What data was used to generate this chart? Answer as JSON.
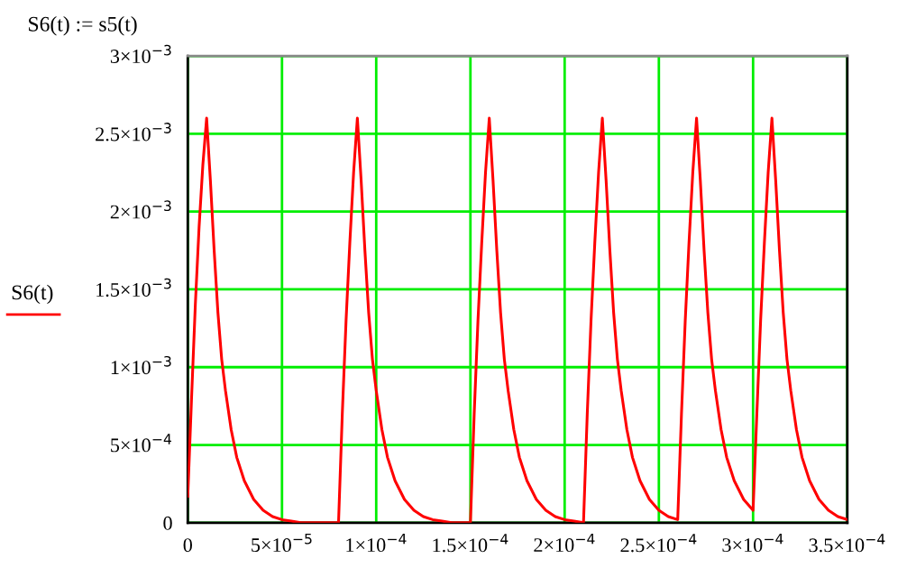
{
  "chart_data": {
    "type": "line",
    "title": "S6(t) := s5(t)",
    "ylabel": "S6(t)",
    "x": [
      0,
      2e-06,
      4e-06,
      6e-06,
      8e-06,
      1e-05,
      1.2e-05,
      1.4e-05,
      1.6e-05,
      1.8e-05,
      2e-05,
      2.3e-05,
      2.6e-05,
      3e-05,
      3.5e-05,
      4e-05,
      4.5e-05,
      5e-05,
      5.5e-05,
      6e-05,
      8e-05,
      8.2e-05,
      8.4e-05,
      8.6e-05,
      8.8e-05,
      9e-05,
      9.2e-05,
      9.4e-05,
      9.6e-05,
      9.8e-05,
      0.0001,
      0.000103,
      0.000106,
      0.00011,
      0.000115,
      0.00012,
      0.000125,
      0.00013,
      0.000135,
      0.00014,
      0.00015,
      0.000152,
      0.000154,
      0.000156,
      0.000158,
      0.00016,
      0.000162,
      0.000164,
      0.000166,
      0.000168,
      0.00017,
      0.000173,
      0.000176,
      0.00018,
      0.000185,
      0.00019,
      0.000195,
      0.0002,
      0.000205,
      0.00021,
      0.000212,
      0.000214,
      0.000216,
      0.000218,
      0.00022,
      0.000222,
      0.000224,
      0.000226,
      0.000228,
      0.00023,
      0.000233,
      0.000236,
      0.00024,
      0.000245,
      0.00025,
      0.000255,
      0.00026,
      0.000262,
      0.000264,
      0.000266,
      0.000268,
      0.00027,
      0.000272,
      0.000274,
      0.000276,
      0.000278,
      0.00028,
      0.000283,
      0.000286,
      0.00029,
      0.000295,
      0.0003,
      0.000302,
      0.000304,
      0.000306,
      0.000308,
      0.00031,
      0.000312,
      0.000314,
      0.000316,
      0.000318,
      0.00032,
      0.000323,
      0.000326,
      0.00033,
      0.000335,
      0.00034,
      0.000345,
      0.00035
    ],
    "series": [
      {
        "color": "#ff0000",
        "values": [
          0.00017,
          0.0008,
          0.0014,
          0.0019,
          0.0023,
          0.0026,
          0.0022,
          0.00175,
          0.00135,
          0.00105,
          0.00085,
          0.0006,
          0.00042,
          0.00027,
          0.00015,
          8e-05,
          4e-05,
          2e-05,
          1e-05,
          0,
          0,
          0.0007,
          0.0013,
          0.0018,
          0.00225,
          0.0026,
          0.0022,
          0.00175,
          0.00135,
          0.00105,
          0.00085,
          0.0006,
          0.00042,
          0.00027,
          0.00015,
          8e-05,
          4e-05,
          2e-05,
          1e-05,
          0,
          0,
          0.0007,
          0.0013,
          0.0018,
          0.00225,
          0.0026,
          0.0022,
          0.00175,
          0.00135,
          0.00105,
          0.00085,
          0.0006,
          0.00042,
          0.00027,
          0.00015,
          8e-05,
          4e-05,
          2e-05,
          1e-05,
          0,
          0.0007,
          0.0013,
          0.0018,
          0.00225,
          0.0026,
          0.0022,
          0.00175,
          0.00135,
          0.00105,
          0.00085,
          0.0006,
          0.00042,
          0.00027,
          0.00015,
          8e-05,
          4e-05,
          2e-05,
          0.0007,
          0.0013,
          0.0018,
          0.00225,
          0.0026,
          0.0022,
          0.00175,
          0.00135,
          0.00105,
          0.00085,
          0.0006,
          0.00042,
          0.00027,
          0.00015,
          8e-05,
          0.0007,
          0.0013,
          0.0018,
          0.00225,
          0.0026,
          0.0022,
          0.00175,
          0.00135,
          0.00105,
          0.00085,
          0.0006,
          0.00042,
          0.00027,
          0.00015,
          8e-05,
          4e-05,
          2e-05
        ]
      }
    ],
    "xlim": [
      0,
      0.00035
    ],
    "ylim": [
      0,
      0.003
    ],
    "xticks": [
      0,
      {
        "value": 5e-05,
        "label": "5×10$^{−5}$"
      },
      {
        "value": 0.0001,
        "label": "1×10$^{−4}$"
      },
      {
        "value": 0.00015,
        "label": "1.5×10$^{−4}$"
      },
      {
        "value": 0.0002,
        "label": "2×10$^{−4}$"
      },
      {
        "value": 0.00025,
        "label": "2.5×10$^{−4}$"
      },
      {
        "value": 0.0003,
        "label": "3×10$^{−4}$"
      },
      {
        "value": 0.00035,
        "label": "3.5×10$^{−4}$"
      }
    ],
    "yticks": [
      0,
      {
        "value": 0.0005,
        "label": "5×10$^{−4}$"
      },
      {
        "value": 0.001,
        "label": "1×10$^{−3}$"
      },
      {
        "value": 0.0015,
        "label": "1.5×10$^{−3}$"
      },
      {
        "value": 0.002,
        "label": "2×10$^{−3}$"
      },
      {
        "value": 0.0025,
        "label": "2.5×10$^{−3}$"
      },
      {
        "value": 0.003,
        "label": "3×10$^{−3}$"
      }
    ],
    "grid": true,
    "line_style": "solid"
  }
}
